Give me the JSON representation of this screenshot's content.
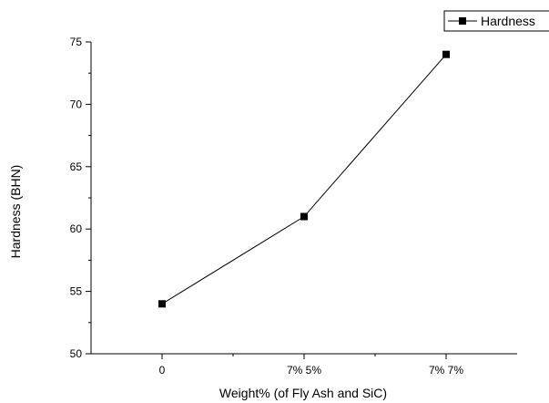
{
  "chart_data": {
    "type": "line",
    "title": "",
    "xlabel": "Weight% (of Fly Ash and SiC)",
    "ylabel": "Hardness (BHN)",
    "categories": [
      "0",
      "7% 5%",
      "7% 7%"
    ],
    "series": [
      {
        "name": "Hardness",
        "values": [
          54,
          61,
          74
        ],
        "color": "#000000",
        "marker": "square"
      }
    ],
    "ylim": [
      50,
      75
    ],
    "yticks": [
      50,
      55,
      60,
      65,
      70,
      75
    ],
    "grid": false,
    "legend": "top-right"
  }
}
